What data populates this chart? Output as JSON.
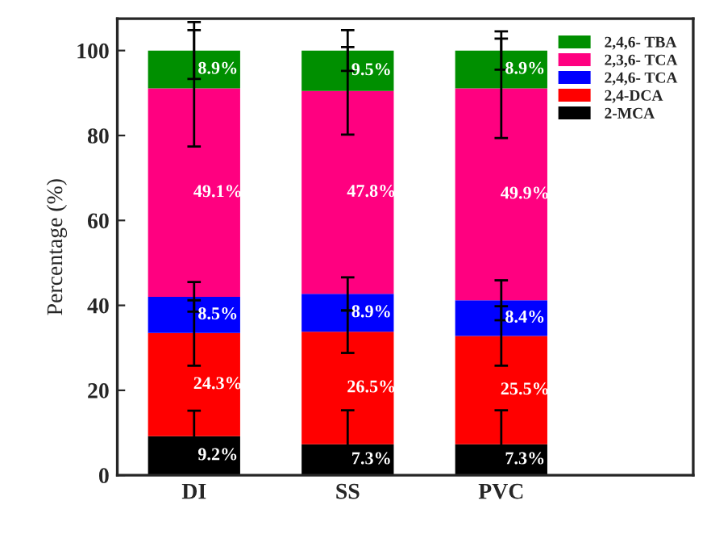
{
  "chart_data": {
    "type": "bar",
    "stacked": true,
    "ylabel": "Percentage (%)",
    "categories": [
      "DI",
      "SS",
      "PVC"
    ],
    "ylim": [
      0,
      107.5
    ],
    "yticks": [
      0,
      20,
      40,
      60,
      80,
      100
    ],
    "grid": false,
    "legend": "top right",
    "series": [
      {
        "name": "2-MCA",
        "color": "#000000",
        "values": [
          9.2,
          7.3,
          7.3
        ],
        "errors": [
          6,
          8,
          8
        ],
        "value_labels": [
          "9.2%",
          "7.3%",
          "7.3%"
        ]
      },
      {
        "name": "2,4-DCA",
        "color": "#ff0000",
        "values": [
          24.3,
          26.5,
          25.5
        ],
        "errors": [
          7.7,
          5,
          7
        ],
        "value_labels": [
          "24.3%",
          "26.5%",
          "25.5%"
        ]
      },
      {
        "name": "2,4,6- TCA",
        "color": "#0000ff",
        "values": [
          8.5,
          8.9,
          8.4
        ],
        "errors": [
          3.5,
          3.9,
          4.7
        ],
        "value_labels": [
          "8.5%",
          "8.9%",
          "8.4%"
        ]
      },
      {
        "name": "2,3,6- TCA",
        "color": "#ff0080",
        "values": [
          49.1,
          47.8,
          49.9
        ],
        "errors": [
          13.7,
          10.3,
          11.7
        ],
        "value_labels": [
          "49.1%",
          "47.8%",
          "49.9%"
        ]
      },
      {
        "name": "2,4,6- TBA",
        "color": "#008f00",
        "values": [
          8.9,
          9.5,
          8.9
        ],
        "errors": [
          6.7,
          4.8,
          4.5
        ],
        "value_labels": [
          "8.9%",
          "9.5%",
          "8.9%"
        ]
      }
    ]
  }
}
